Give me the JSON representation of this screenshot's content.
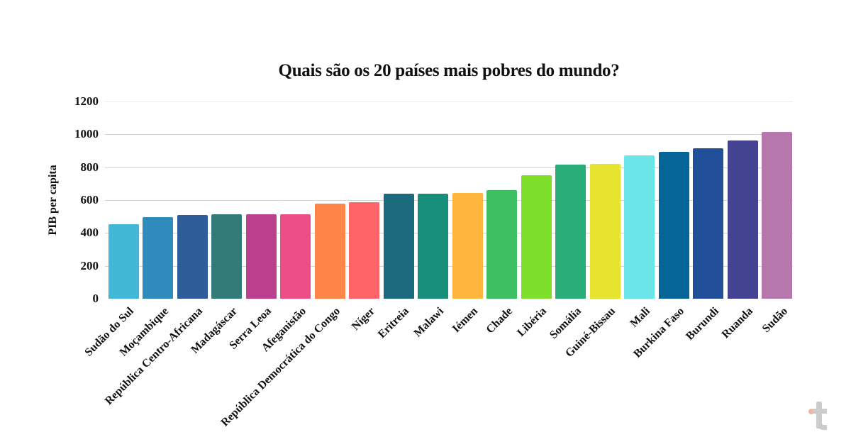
{
  "chart_data": {
    "type": "bar",
    "title": "Quais são os 20 países mais pobres do mundo?",
    "xlabel": "",
    "ylabel": "PIB per capita",
    "ylim": [
      0,
      1200
    ],
    "yticks": [
      0,
      200,
      400,
      600,
      800,
      1000,
      1200
    ],
    "grid": true,
    "legend": null,
    "categories": [
      "Sudão do Sul",
      "Moçambique",
      "República Centro-Africana",
      "Madagáscar",
      "Serra Leoa",
      "Afeganistão",
      "República Democrática do Congo",
      "Níger",
      "Eritreia",
      "Malawi",
      "Iémen",
      "Chade",
      "Libéria",
      "Somália",
      "Guiné-Bissau",
      "Mali",
      "Burkina Faso",
      "Burundi",
      "Ruanda",
      "Sudão"
    ],
    "values": [
      455,
      497,
      510,
      514,
      514,
      514,
      578,
      587,
      639,
      639,
      643,
      660,
      751,
      816,
      820,
      872,
      894,
      915,
      963,
      1014
    ],
    "colors": [
      "#42b8d6",
      "#2e8bbb",
      "#2e5e99",
      "#337b78",
      "#bb408e",
      "#ee4e86",
      "#ff8549",
      "#ff6469",
      "#1b6a7e",
      "#168e79",
      "#ffb63e",
      "#3dbf62",
      "#7fe02c",
      "#2aae79",
      "#e6e42f",
      "#6ae6e8",
      "#056598",
      "#214f99",
      "#434391",
      "#b678ac"
    ]
  },
  "watermark": {
    "letter": "t",
    "dot_color": "#f6a68e",
    "color": "#cccccc"
  }
}
